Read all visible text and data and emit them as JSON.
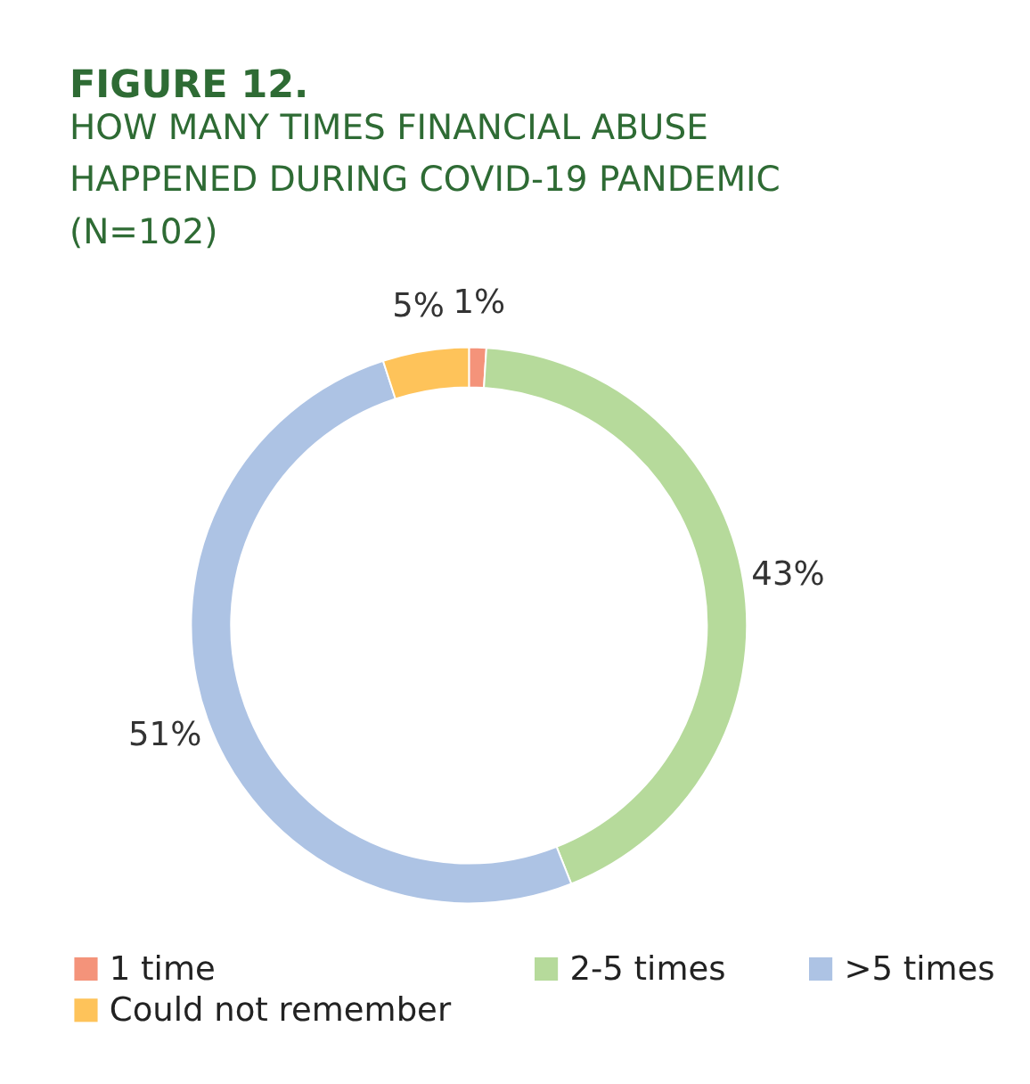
{
  "chart_data": {
    "type": "donut",
    "title": "FIGURE 12.",
    "subtitle": "HOW MANY TIMES FINANCIAL ABUSE HAPPENED DURING COVID-19 PANDEMIC (N=102)",
    "categories": [
      "1 time",
      "2-5 times",
      ">5 times",
      "Could not remember"
    ],
    "values": [
      1,
      43,
      51,
      5
    ],
    "colors": [
      "#f4937a",
      "#b6da9b",
      "#adc3e4",
      "#fec35a"
    ],
    "value_labels": [
      "1%",
      "43%",
      "51%",
      "5%"
    ],
    "legend": "bottom"
  }
}
